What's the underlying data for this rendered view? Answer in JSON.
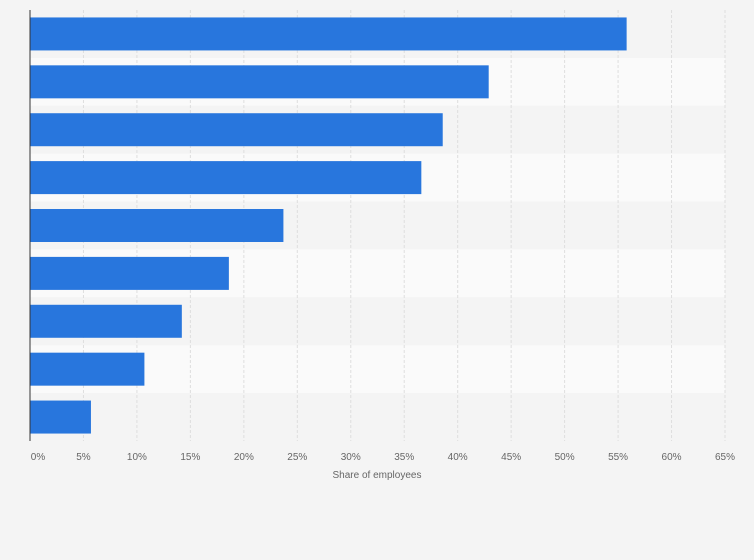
{
  "chart_data": {
    "type": "bar",
    "orientation": "horizontal",
    "categories": [
      "",
      "",
      "",
      "",
      "",
      "",
      "",
      "",
      ""
    ],
    "values": [
      55.8,
      42.9,
      38.6,
      36.6,
      23.7,
      18.6,
      14.2,
      10.7,
      5.7
    ],
    "title": "",
    "xlabel": "Share of employees",
    "ylabel": "",
    "xlim": [
      0,
      65
    ],
    "x_ticks": [
      "0%",
      "5%",
      "10%",
      "15%",
      "20%",
      "25%",
      "30%",
      "35%",
      "40%",
      "45%",
      "50%",
      "55%",
      "60%",
      "65%"
    ],
    "grid": true,
    "legend": "none"
  },
  "colors": {
    "bar": "#2876dd",
    "background": "#f4f4f4",
    "band_light": "#fafafa",
    "band_dark": "#f4f4f4",
    "gridline": "#dedede",
    "axis": "#333333"
  }
}
